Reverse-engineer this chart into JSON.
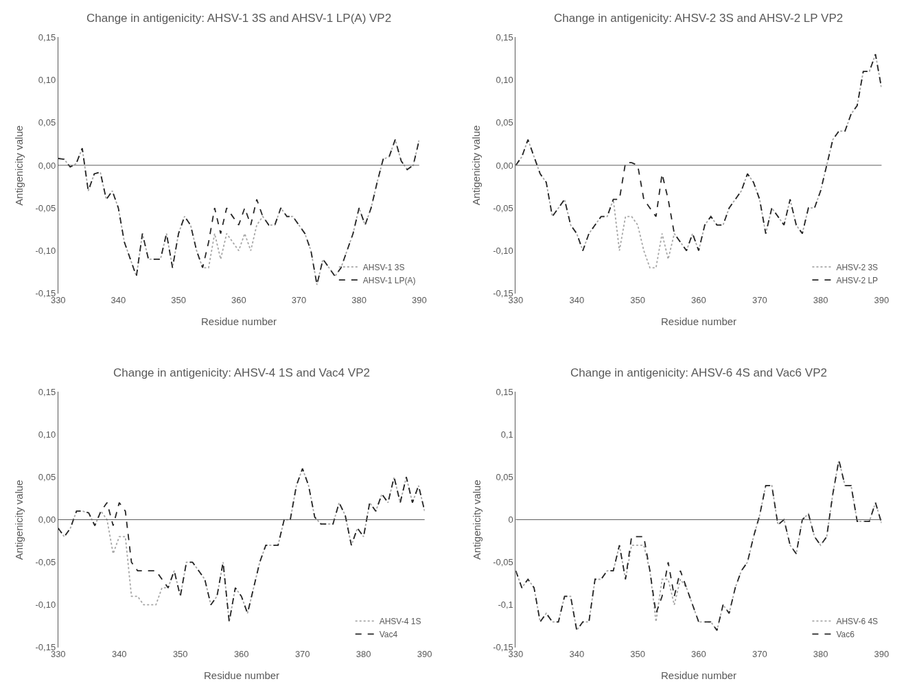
{
  "chart_data": [
    {
      "type": "line",
      "title": "Change in antigenicity: AHSV-1 3S and AHSV-1 LP(A) VP2",
      "xlabel": "Residue number",
      "ylabel": "Antigenicity value",
      "legend": "bottom right",
      "x": [
        330,
        331,
        332,
        333,
        334,
        335,
        336,
        337,
        338,
        339,
        340,
        341,
        342,
        343,
        344,
        345,
        346,
        347,
        348,
        349,
        350,
        351,
        352,
        353,
        354,
        355,
        356,
        357,
        358,
        359,
        360,
        361,
        362,
        363,
        364,
        365,
        366,
        367,
        368,
        369,
        370,
        371,
        372,
        373,
        374,
        375,
        376,
        377,
        378,
        379,
        380,
        381,
        382,
        383,
        384,
        385,
        386,
        387,
        388,
        389,
        390
      ],
      "xlim": [
        330,
        390
      ],
      "xticks": [
        330,
        340,
        350,
        360,
        370,
        380,
        390
      ],
      "ylim": [
        -0.15,
        0.15
      ],
      "yticks": [
        {
          "value": -0.15,
          "label": "-0,15"
        },
        {
          "value": -0.1,
          "label": "-0,10"
        },
        {
          "value": -0.05,
          "label": "-0,05"
        },
        {
          "value": 0,
          "label": "0,00"
        },
        {
          "value": 0.05,
          "label": "0,05"
        },
        {
          "value": 0.1,
          "label": "0,10"
        },
        {
          "value": 0.15,
          "label": "0,15"
        }
      ],
      "ref_lines": [
        {
          "axis": "y",
          "value": 0,
          "color": "#595959"
        }
      ],
      "series": [
        {
          "name": "AHSV-1 3S",
          "color": "#a6a6a6",
          "line_style": "dotted",
          "values": [
            0.008,
            0.007,
            -0.002,
            0.002,
            0.02,
            -0.03,
            -0.01,
            -0.008,
            -0.04,
            -0.03,
            -0.05,
            -0.09,
            -0.11,
            -0.13,
            -0.08,
            -0.11,
            -0.11,
            -0.11,
            -0.08,
            -0.12,
            -0.08,
            -0.06,
            -0.07,
            -0.1,
            -0.12,
            -0.12,
            -0.08,
            -0.11,
            -0.08,
            -0.09,
            -0.1,
            -0.08,
            -0.1,
            -0.07,
            -0.06,
            -0.07,
            -0.07,
            -0.05,
            -0.06,
            -0.06,
            -0.07,
            -0.08,
            -0.1,
            -0.14,
            -0.11,
            -0.12,
            -0.13,
            -0.12,
            -0.1,
            -0.08,
            -0.05,
            -0.07,
            -0.05,
            -0.02,
            0.007,
            0.01,
            0.03,
            0.005,
            -0.005,
            0,
            0.03
          ]
        },
        {
          "name": "AHSV-1 LP(A)",
          "color": "#262626",
          "line_style": "dashed",
          "values": [
            0.008,
            0.007,
            -0.002,
            0.002,
            0.02,
            -0.03,
            -0.01,
            -0.008,
            -0.04,
            -0.03,
            -0.05,
            -0.09,
            -0.11,
            -0.13,
            -0.08,
            -0.11,
            -0.11,
            -0.11,
            -0.08,
            -0.12,
            -0.08,
            -0.06,
            -0.07,
            -0.1,
            -0.12,
            -0.09,
            -0.05,
            -0.08,
            -0.05,
            -0.06,
            -0.07,
            -0.05,
            -0.07,
            -0.04,
            -0.06,
            -0.07,
            -0.07,
            -0.05,
            -0.06,
            -0.06,
            -0.07,
            -0.08,
            -0.1,
            -0.14,
            -0.11,
            -0.12,
            -0.13,
            -0.12,
            -0.1,
            -0.08,
            -0.05,
            -0.07,
            -0.05,
            -0.02,
            0.007,
            0.01,
            0.03,
            0.005,
            -0.005,
            0,
            0.03
          ]
        }
      ]
    },
    {
      "type": "line",
      "title": "Change in antigenicity: AHSV-2 3S and AHSV-2 LP VP2",
      "xlabel": "Residue number",
      "ylabel": "Antigenicity value",
      "legend": "bottom right",
      "x": [
        330,
        331,
        332,
        333,
        334,
        335,
        336,
        337,
        338,
        339,
        340,
        341,
        342,
        343,
        344,
        345,
        346,
        347,
        348,
        349,
        350,
        351,
        352,
        353,
        354,
        355,
        356,
        357,
        358,
        359,
        360,
        361,
        362,
        363,
        364,
        365,
        366,
        367,
        368,
        369,
        370,
        371,
        372,
        373,
        374,
        375,
        376,
        377,
        378,
        379,
        380,
        381,
        382,
        383,
        384,
        385,
        386,
        387,
        388,
        389,
        390
      ],
      "xlim": [
        330,
        390
      ],
      "xticks": [
        330,
        340,
        350,
        360,
        370,
        380,
        390
      ],
      "ylim": [
        -0.15,
        0.15
      ],
      "yticks": [
        {
          "value": -0.15,
          "label": "-0,15"
        },
        {
          "value": -0.1,
          "label": "-0,10"
        },
        {
          "value": -0.05,
          "label": "-0,05"
        },
        {
          "value": 0,
          "label": "0,00"
        },
        {
          "value": 0.05,
          "label": "0,05"
        },
        {
          "value": 0.1,
          "label": "0,10"
        },
        {
          "value": 0.15,
          "label": "0,15"
        }
      ],
      "ref_lines": [
        {
          "axis": "y",
          "value": 0,
          "color": "#595959"
        }
      ],
      "series": [
        {
          "name": "AHSV-2 3S",
          "color": "#a6a6a6",
          "line_style": "dotted",
          "values": [
            0,
            0.01,
            0.03,
            0.01,
            -0.01,
            -0.02,
            -0.06,
            -0.05,
            -0.04,
            -0.07,
            -0.08,
            -0.1,
            -0.08,
            -0.07,
            -0.06,
            -0.06,
            -0.04,
            -0.1,
            -0.06,
            -0.06,
            -0.07,
            -0.1,
            -0.12,
            -0.12,
            -0.08,
            -0.11,
            -0.08,
            -0.09,
            -0.1,
            -0.08,
            -0.1,
            -0.07,
            -0.06,
            -0.07,
            -0.07,
            -0.05,
            -0.04,
            -0.03,
            -0.01,
            -0.02,
            -0.04,
            -0.08,
            -0.05,
            -0.06,
            -0.07,
            -0.04,
            -0.07,
            -0.08,
            -0.05,
            -0.05,
            -0.03,
            0,
            0.03,
            0.04,
            0.04,
            0.06,
            0.07,
            0.11,
            0.11,
            0.13,
            0.09
          ]
        },
        {
          "name": "AHSV-2 LP",
          "color": "#262626",
          "line_style": "dashed",
          "values": [
            0,
            0.01,
            0.03,
            0.01,
            -0.01,
            -0.02,
            -0.06,
            -0.05,
            -0.04,
            -0.07,
            -0.08,
            -0.1,
            -0.08,
            -0.07,
            -0.06,
            -0.06,
            -0.04,
            -0.04,
            0.003,
            0.003,
            0,
            -0.04,
            -0.05,
            -0.06,
            -0.01,
            -0.04,
            -0.08,
            -0.09,
            -0.1,
            -0.08,
            -0.1,
            -0.07,
            -0.06,
            -0.07,
            -0.07,
            -0.05,
            -0.04,
            -0.03,
            -0.01,
            -0.02,
            -0.04,
            -0.08,
            -0.05,
            -0.06,
            -0.07,
            -0.04,
            -0.07,
            -0.08,
            -0.05,
            -0.05,
            -0.03,
            0,
            0.03,
            0.04,
            0.04,
            0.06,
            0.07,
            0.11,
            0.11,
            0.13,
            0.09
          ]
        }
      ]
    },
    {
      "type": "line",
      "title": "Change in antigenicity: AHSV-4 1S and Vac4 VP2",
      "xlabel": "Residue number",
      "ylabel": "Antigenicity value",
      "legend": "bottom right",
      "x": [
        330,
        331,
        332,
        333,
        334,
        335,
        336,
        337,
        338,
        339,
        340,
        341,
        342,
        343,
        344,
        345,
        346,
        347,
        348,
        349,
        350,
        351,
        352,
        353,
        354,
        355,
        356,
        357,
        358,
        359,
        360,
        361,
        362,
        363,
        364,
        365,
        366,
        367,
        368,
        369,
        370,
        371,
        372,
        373,
        374,
        375,
        376,
        377,
        378,
        379,
        380,
        381,
        382,
        383,
        384,
        385,
        386,
        387,
        388,
        389,
        390
      ],
      "xlim": [
        330,
        390
      ],
      "xticks": [
        330,
        340,
        350,
        360,
        370,
        380,
        390
      ],
      "ylim": [
        -0.15,
        0.15
      ],
      "yticks": [
        {
          "value": -0.15,
          "label": "-0,15"
        },
        {
          "value": -0.1,
          "label": "-0,10"
        },
        {
          "value": -0.05,
          "label": "-0,05"
        },
        {
          "value": 0,
          "label": "0,00"
        },
        {
          "value": 0.05,
          "label": "0,05"
        },
        {
          "value": 0.1,
          "label": "0,10"
        },
        {
          "value": 0.15,
          "label": "0,15"
        }
      ],
      "ref_lines": [
        {
          "axis": "y",
          "value": 0,
          "color": "#595959"
        }
      ],
      "series": [
        {
          "name": "AHSV-4 1S",
          "color": "#a6a6a6",
          "line_style": "dotted",
          "values": [
            -0.01,
            -0.02,
            -0.01,
            0.01,
            0.01,
            0.008,
            -0.007,
            0.01,
            0,
            -0.04,
            -0.02,
            -0.02,
            -0.09,
            -0.09,
            -0.1,
            -0.1,
            -0.1,
            -0.08,
            -0.08,
            -0.06,
            -0.09,
            -0.05,
            -0.05,
            -0.06,
            -0.07,
            -0.1,
            -0.09,
            -0.05,
            -0.12,
            -0.08,
            -0.09,
            -0.11,
            -0.08,
            -0.05,
            -0.03,
            -0.03,
            -0.03,
            0,
            0,
            0.04,
            0.06,
            0.04,
            0.003,
            -0.005,
            -0.005,
            -0.005,
            0.02,
            0.005,
            -0.03,
            -0.01,
            -0.02,
            0.02,
            0.01,
            0.03,
            0.02,
            0.05,
            0.02,
            0.05,
            0.02,
            0.04,
            0.01
          ]
        },
        {
          "name": "Vac4",
          "color": "#262626",
          "line_style": "dashed",
          "values": [
            -0.01,
            -0.02,
            -0.01,
            0.01,
            0.01,
            0.008,
            -0.007,
            0.01,
            0.02,
            -0.007,
            0.02,
            0.01,
            -0.05,
            -0.06,
            -0.06,
            -0.06,
            -0.06,
            -0.07,
            -0.08,
            -0.06,
            -0.09,
            -0.05,
            -0.05,
            -0.06,
            -0.07,
            -0.1,
            -0.09,
            -0.05,
            -0.12,
            -0.08,
            -0.09,
            -0.11,
            -0.08,
            -0.05,
            -0.03,
            -0.03,
            -0.03,
            0,
            0,
            0.04,
            0.06,
            0.04,
            0.003,
            -0.005,
            -0.005,
            -0.005,
            0.02,
            0.005,
            -0.03,
            -0.01,
            -0.02,
            0.02,
            0.01,
            0.03,
            0.02,
            0.05,
            0.02,
            0.05,
            0.02,
            0.04,
            0.01
          ]
        }
      ]
    },
    {
      "type": "line",
      "title": "Change in antigenicity: AHSV-6 4S and Vac6 VP2",
      "xlabel": "Residue number",
      "ylabel": "Antigenicity value",
      "legend": "bottom right",
      "x": [
        330,
        331,
        332,
        333,
        334,
        335,
        336,
        337,
        338,
        339,
        340,
        341,
        342,
        343,
        344,
        345,
        346,
        347,
        348,
        349,
        350,
        351,
        352,
        353,
        354,
        355,
        356,
        357,
        358,
        359,
        360,
        361,
        362,
        363,
        364,
        365,
        366,
        367,
        368,
        369,
        370,
        371,
        372,
        373,
        374,
        375,
        376,
        377,
        378,
        379,
        380,
        381,
        382,
        383,
        384,
        385,
        386,
        387,
        388,
        389,
        390
      ],
      "xlim": [
        330,
        390
      ],
      "xticks": [
        330,
        340,
        350,
        360,
        370,
        380,
        390
      ],
      "ylim": [
        -0.15,
        0.15
      ],
      "yticks": [
        {
          "value": -0.15,
          "label": "-0,15"
        },
        {
          "value": -0.1,
          "label": "-0,1"
        },
        {
          "value": -0.05,
          "label": "-0,05"
        },
        0,
        {
          "value": 0.05,
          "label": "0,05"
        },
        {
          "value": 0.1,
          "label": "0,1"
        },
        {
          "value": 0.15,
          "label": "0,15"
        }
      ],
      "ref_lines": [
        {
          "axis": "y",
          "value": 0,
          "color": "#595959"
        }
      ],
      "series": [
        {
          "name": "AHSV-6 4S",
          "color": "#a6a6a6",
          "line_style": "dotted",
          "values": [
            -0.06,
            -0.08,
            -0.07,
            -0.08,
            -0.12,
            -0.11,
            -0.12,
            -0.12,
            -0.09,
            -0.09,
            -0.13,
            -0.12,
            -0.12,
            -0.07,
            -0.07,
            -0.06,
            -0.06,
            -0.03,
            -0.07,
            -0.03,
            -0.03,
            -0.03,
            -0.06,
            -0.12,
            -0.07,
            -0.07,
            -0.1,
            -0.07,
            -0.08,
            -0.1,
            -0.12,
            -0.12,
            -0.12,
            -0.13,
            -0.1,
            -0.11,
            -0.08,
            -0.06,
            -0.05,
            -0.02,
            0.005,
            0.04,
            0.04,
            -0.006,
            0,
            -0.03,
            -0.04,
            0,
            0.007,
            -0.02,
            -0.03,
            -0.02,
            0.03,
            0.07,
            0.04,
            0.04,
            -0.002,
            -0.002,
            -0.002,
            0.02,
            -0.004
          ]
        },
        {
          "name": "Vac6",
          "color": "#262626",
          "line_style": "dashed",
          "values": [
            -0.06,
            -0.08,
            -0.07,
            -0.08,
            -0.12,
            -0.11,
            -0.12,
            -0.12,
            -0.09,
            -0.09,
            -0.13,
            -0.12,
            -0.12,
            -0.07,
            -0.07,
            -0.06,
            -0.06,
            -0.03,
            -0.07,
            -0.02,
            -0.02,
            -0.02,
            -0.06,
            -0.11,
            -0.09,
            -0.05,
            -0.09,
            -0.06,
            -0.08,
            -0.1,
            -0.12,
            -0.12,
            -0.12,
            -0.13,
            -0.1,
            -0.11,
            -0.08,
            -0.06,
            -0.05,
            -0.02,
            0.005,
            0.04,
            0.04,
            -0.006,
            0,
            -0.03,
            -0.04,
            0,
            0.007,
            -0.02,
            -0.03,
            -0.02,
            0.03,
            0.07,
            0.04,
            0.04,
            -0.002,
            -0.002,
            -0.002,
            0.02,
            -0.004
          ]
        }
      ]
    }
  ]
}
